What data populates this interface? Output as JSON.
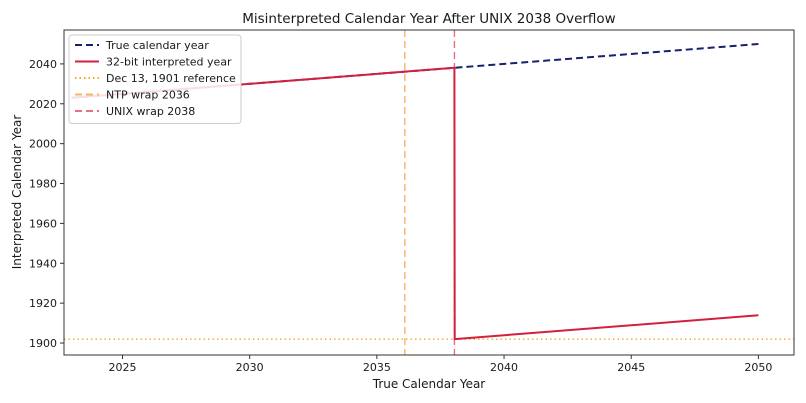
{
  "chart_data": {
    "type": "line",
    "title": "Misinterpreted Calendar Year After UNIX 2038 Overflow",
    "xlabel": "True Calendar Year",
    "ylabel": "Interpreted Calendar Year",
    "xlim": [
      2022.7,
      2051.4
    ],
    "ylim": [
      1894,
      2057
    ],
    "xticks": [
      2025,
      2030,
      2035,
      2040,
      2045,
      2050
    ],
    "yticks": [
      1900,
      1920,
      1940,
      1960,
      1980,
      2000,
      2020,
      2040
    ],
    "grid": false,
    "legend_position": "upper-left",
    "series": [
      {
        "name": "True calendar year",
        "style": "dashed",
        "color": "#1a1f6e",
        "points": [
          [
            2023.0,
            2023.0
          ],
          [
            2038.05,
            2038.05
          ],
          [
            2050.0,
            2050.0
          ]
        ]
      },
      {
        "name": "32-bit interpreted year",
        "style": "solid",
        "color": "#d1213f",
        "points": [
          [
            2023.0,
            2023.0
          ],
          [
            2038.05,
            2038.05
          ],
          [
            2038.06,
            1901.95
          ],
          [
            2050.0,
            1913.9
          ]
        ]
      }
    ],
    "reference_lines": [
      {
        "name": "Dec 13, 1901 reference",
        "orientation": "horizontal",
        "value": 1901.95,
        "style": "dotted",
        "color": "#f5a623"
      },
      {
        "name": "NTP wrap 2036",
        "orientation": "vertical",
        "value": 2036.1,
        "style": "dashed",
        "color": "#f7b36b"
      },
      {
        "name": "UNIX wrap 2038",
        "orientation": "vertical",
        "value": 2038.05,
        "style": "dashed",
        "color": "#e8707e"
      }
    ]
  }
}
